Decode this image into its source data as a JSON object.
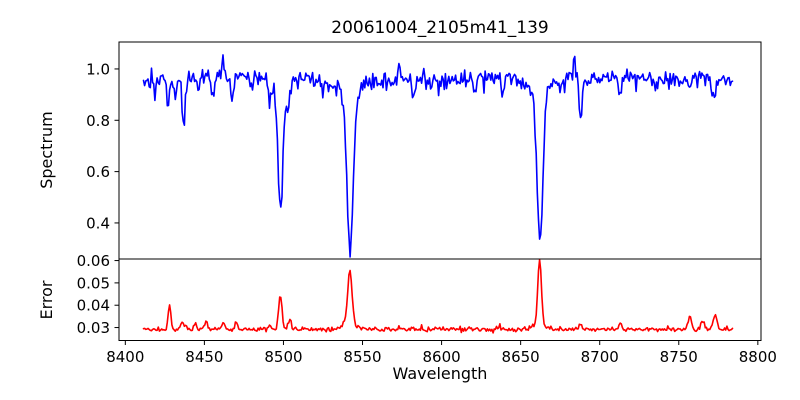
{
  "window": {
    "background": "#ffffff"
  },
  "chart_data": {
    "type": "line",
    "title": "20061004_2105m41_139",
    "xlabel": "Wavelength",
    "grid": false,
    "legend": "none",
    "xlim": [
      8396,
      8802
    ],
    "xticks": [
      "8400",
      "8450",
      "8500",
      "8550",
      "8600",
      "8650",
      "8700",
      "8750",
      "8800"
    ],
    "x_data_range": [
      8411.5,
      8784
    ],
    "n_points": 520,
    "seed": 139,
    "panels": [
      {
        "name": "spectrum",
        "ylabel": "Spectrum",
        "ylim": [
          0.2595,
          1.105
        ],
        "yticks": [
          "1.0",
          "0.8",
          "0.6",
          "0.4"
        ],
        "series": {
          "name": "spectrum",
          "color": "#0000ff",
          "continuum": 0.963,
          "continuum_wave": {
            "amp": 0.006,
            "period": 210
          },
          "noise_sigma": 0.017,
          "outlier_prob": 0.05,
          "outlier_amp": 0.05,
          "absorption_lines": [
            {
              "center": 8419.0,
              "depth": 0.055,
              "width": 0.8
            },
            {
              "center": 8427.0,
              "depth": 0.105,
              "width": 0.9
            },
            {
              "center": 8431.5,
              "depth": 0.07,
              "width": 0.7
            },
            {
              "center": 8437.0,
              "depth": 0.185,
              "width": 1.0
            },
            {
              "center": 8446.0,
              "depth": 0.05,
              "width": 0.8
            },
            {
              "center": 8455.0,
              "depth": 0.075,
              "width": 0.9
            },
            {
              "center": 8467.5,
              "depth": 0.09,
              "width": 0.9
            },
            {
              "center": 8480.0,
              "depth": 0.055,
              "width": 0.8
            },
            {
              "center": 8491.0,
              "depth": 0.08,
              "width": 0.8
            },
            {
              "center": 8498.1,
              "depth": 0.45,
              "width": 1.6
            },
            {
              "center": 8498.1,
              "depth": 0.055,
              "width": 5.0
            },
            {
              "center": 8503.0,
              "depth": 0.09,
              "width": 1.0
            },
            {
              "center": 8542.1,
              "depth": 0.6,
              "width": 2.0
            },
            {
              "center": 8542.1,
              "depth": 0.06,
              "width": 7.0
            },
            {
              "center": 8582.0,
              "depth": 0.065,
              "width": 0.9
            },
            {
              "center": 8598.0,
              "depth": 0.05,
              "width": 0.8
            },
            {
              "center": 8621.0,
              "depth": 0.045,
              "width": 0.8
            },
            {
              "center": 8638.0,
              "depth": 0.05,
              "width": 0.8
            },
            {
              "center": 8662.2,
              "depth": 0.57,
              "width": 1.9
            },
            {
              "center": 8662.2,
              "depth": 0.06,
              "width": 6.0
            },
            {
              "center": 8675.0,
              "depth": 0.05,
              "width": 0.9
            },
            {
              "center": 8688.0,
              "depth": 0.155,
              "width": 1.1
            },
            {
              "center": 8713.0,
              "depth": 0.065,
              "width": 0.9
            },
            {
              "center": 8736.0,
              "depth": 0.05,
              "width": 0.8
            },
            {
              "center": 8757.0,
              "depth": 0.05,
              "width": 0.8
            },
            {
              "center": 8772.0,
              "depth": 0.1,
              "width": 1.0
            }
          ],
          "emission_spikes": [
            {
              "center": 8462.0,
              "height": 0.05,
              "width": 0.7
            },
            {
              "center": 8573.0,
              "height": 0.055,
              "width": 0.7
            },
            {
              "center": 8684.0,
              "height": 0.08,
              "width": 0.7
            }
          ]
        }
      },
      {
        "name": "error",
        "ylabel": "Error",
        "ylim": [
          0.0242,
          0.0607
        ],
        "yticks": [
          "0.06",
          "0.05",
          "0.04",
          "0.03"
        ],
        "series": {
          "name": "error",
          "color": "#ff0000",
          "baseline": 0.0292,
          "noise_sigma": 0.0005,
          "outlier_prob": 0.05,
          "outlier_amp": 0.0018,
          "peaks": [
            {
              "center": 8428.0,
              "height": 0.0105,
              "width": 0.9
            },
            {
              "center": 8436.0,
              "height": 0.003,
              "width": 0.8
            },
            {
              "center": 8444.0,
              "height": 0.0025,
              "width": 0.8
            },
            {
              "center": 8451.0,
              "height": 0.004,
              "width": 0.8
            },
            {
              "center": 8462.0,
              "height": 0.003,
              "width": 0.8
            },
            {
              "center": 8470.0,
              "height": 0.0035,
              "width": 0.8
            },
            {
              "center": 8491.0,
              "height": 0.002,
              "width": 0.8
            },
            {
              "center": 8498.0,
              "height": 0.016,
              "width": 1.0
            },
            {
              "center": 8504.0,
              "height": 0.0045,
              "width": 0.9
            },
            {
              "center": 8542.0,
              "height": 0.0235,
              "width": 1.3
            },
            {
              "center": 8542.0,
              "height": 0.003,
              "width": 4.0
            },
            {
              "center": 8662.0,
              "height": 0.0293,
              "width": 1.1
            },
            {
              "center": 8662.0,
              "height": 0.0025,
              "width": 4.0
            },
            {
              "center": 8688.0,
              "height": 0.0025,
              "width": 1.0
            },
            {
              "center": 8713.0,
              "height": 0.002,
              "width": 0.9
            },
            {
              "center": 8757.0,
              "height": 0.006,
              "width": 1.1
            },
            {
              "center": 8765.0,
              "height": 0.0045,
              "width": 1.0
            },
            {
              "center": 8773.0,
              "height": 0.0065,
              "width": 1.2
            }
          ]
        }
      }
    ]
  }
}
